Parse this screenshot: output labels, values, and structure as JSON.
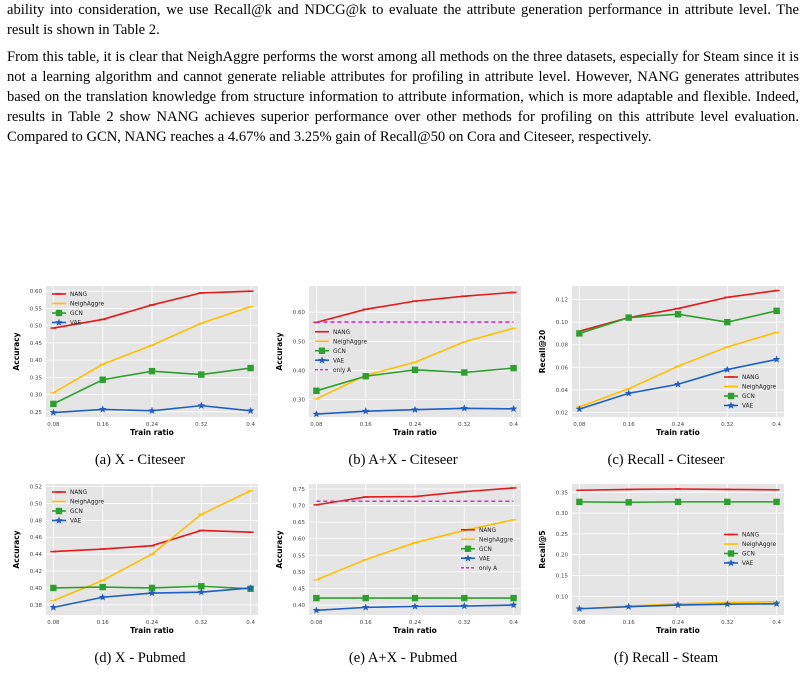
{
  "text": {
    "para1": "ability into consideration, we use Recall@k and NDCG@k to evaluate the attribute generation performance in attribute level. The result is shown in Table 2.",
    "para2": "From this table, it is clear that NeighAggre performs the worst among all methods on the three datasets, especially for Steam since it is not a learning algorithm and cannot generate reliable attributes for profiling in attribute level. However, NANG generates attributes based on the translation knowledge from structure information to attribute information, which is more adaptable and flexible. Indeed, results in Table 2 show NANG achieves superior performance over other methods for profiling on this attribute level evaluation. Compared to GCN, NANG reaches a 4.67% and 3.25% gain of Recall@50 on Cora and Citeseer, respectively."
  },
  "colors": {
    "NANG": "#e41a1c",
    "NeighAggre": "#ffbf00",
    "GCN": "#2ca02c",
    "VAE": "#1f5fc4",
    "only A": "#cc33cc",
    "plot_bg": "#e5e5e5",
    "grid": "#ffffff"
  },
  "chart_data": [
    {
      "type": "line",
      "caption": "(a) X - Citeseer",
      "xlabel": "Train ratio",
      "ylabel": "Accuracy",
      "x": [
        0.08,
        0.16,
        0.24,
        0.32,
        0.4
      ],
      "xticks": [
        "0.08",
        "0.16",
        "0.24",
        "0.32",
        "0.4"
      ],
      "ylim": [
        0.235,
        0.615
      ],
      "yticks": [
        0.25,
        0.3,
        0.35,
        0.4,
        0.45,
        0.5,
        0.55,
        0.6
      ],
      "ytick_labels": [
        "0.25",
        "0.30",
        "0.35",
        "0.40",
        "0.45",
        "0.50",
        "0.55",
        "0.60"
      ],
      "legend": "top-left",
      "series": [
        {
          "name": "NANG",
          "values": [
            0.493,
            0.518,
            0.56,
            0.595,
            0.6
          ]
        },
        {
          "name": "NeighAggre",
          "values": [
            0.305,
            0.388,
            0.443,
            0.507,
            0.555
          ]
        },
        {
          "name": "GCN",
          "values": [
            0.273,
            0.343,
            0.368,
            0.358,
            0.377
          ]
        },
        {
          "name": "VAE",
          "values": [
            0.248,
            0.257,
            0.253,
            0.268,
            0.253
          ]
        }
      ]
    },
    {
      "type": "line",
      "caption": "(b) A+X - Citeseer",
      "xlabel": "Train ratio",
      "ylabel": "Accuracy",
      "x": [
        0.08,
        0.16,
        0.24,
        0.32,
        0.4
      ],
      "xticks": [
        "0.08",
        "0.16",
        "0.24",
        "0.32",
        "0.4"
      ],
      "ylim": [
        0.24,
        0.69
      ],
      "yticks": [
        0.3,
        0.4,
        0.5,
        0.6
      ],
      "ytick_labels": [
        "0.30",
        "0.40",
        "0.50",
        "0.60"
      ],
      "legend": "center-left",
      "series": [
        {
          "name": "NANG",
          "values": [
            0.565,
            0.61,
            0.638,
            0.655,
            0.668
          ]
        },
        {
          "name": "NeighAggre",
          "values": [
            0.302,
            0.383,
            0.428,
            0.498,
            0.545
          ]
        },
        {
          "name": "GCN",
          "values": [
            0.33,
            0.38,
            0.402,
            0.393,
            0.408
          ]
        },
        {
          "name": "VAE",
          "values": [
            0.25,
            0.26,
            0.265,
            0.27,
            0.268
          ]
        },
        {
          "name": "only A",
          "values": [
            0.566,
            0.566,
            0.566,
            0.566,
            0.566
          ],
          "dashed": true
        }
      ]
    },
    {
      "type": "line",
      "caption": "(c) Recall - Citeseer",
      "xlabel": "Train ratio",
      "ylabel": "Recall@20",
      "x": [
        0.08,
        0.16,
        0.24,
        0.32,
        0.4
      ],
      "xticks": [
        "0.08",
        "0.16",
        "0.24",
        "0.32",
        "0.4"
      ],
      "ylim": [
        0.016,
        0.132
      ],
      "yticks": [
        0.02,
        0.04,
        0.06,
        0.08,
        0.1,
        0.12
      ],
      "ytick_labels": [
        "0.02",
        "0.04",
        "0.06",
        "0.08",
        "0.10",
        "0.12"
      ],
      "legend": "bottom-right",
      "series": [
        {
          "name": "NANG",
          "values": [
            0.092,
            0.104,
            0.112,
            0.122,
            0.128
          ]
        },
        {
          "name": "NeighAggre",
          "values": [
            0.025,
            0.041,
            0.061,
            0.078,
            0.091
          ]
        },
        {
          "name": "GCN",
          "values": [
            0.09,
            0.104,
            0.107,
            0.1,
            0.11
          ]
        },
        {
          "name": "VAE",
          "values": [
            0.023,
            0.037,
            0.045,
            0.058,
            0.067
          ]
        }
      ]
    },
    {
      "type": "line",
      "caption": "(d) X - Pubmed",
      "xlabel": "Train ratio",
      "ylabel": "Accuracy",
      "x": [
        0.08,
        0.16,
        0.24,
        0.32,
        0.4
      ],
      "xticks": [
        "0.08",
        "0.16",
        "0.24",
        "0.32",
        "0.4"
      ],
      "ylim": [
        0.368,
        0.523
      ],
      "yticks": [
        0.38,
        0.4,
        0.42,
        0.44,
        0.46,
        0.48,
        0.5,
        0.52
      ],
      "ytick_labels": [
        "0.38",
        "0.40",
        "0.42",
        "0.44",
        "0.46",
        "0.48",
        "0.50",
        "0.52"
      ],
      "legend": "top-left",
      "series": [
        {
          "name": "NANG",
          "values": [
            0.443,
            0.446,
            0.45,
            0.468,
            0.466
          ]
        },
        {
          "name": "NeighAggre",
          "values": [
            0.385,
            0.409,
            0.44,
            0.487,
            0.515
          ]
        },
        {
          "name": "GCN",
          "values": [
            0.4,
            0.401,
            0.4,
            0.402,
            0.399
          ]
        },
        {
          "name": "VAE",
          "values": [
            0.377,
            0.389,
            0.394,
            0.395,
            0.4
          ]
        }
      ]
    },
    {
      "type": "line",
      "caption": "(e) A+X - Pubmed",
      "xlabel": "Train ratio",
      "ylabel": "Accuracy",
      "x": [
        0.08,
        0.16,
        0.24,
        0.32,
        0.4
      ],
      "xticks": [
        "0.08",
        "0.16",
        "0.24",
        "0.32",
        "0.4"
      ],
      "ylim": [
        0.37,
        0.765
      ],
      "yticks": [
        0.4,
        0.45,
        0.5,
        0.55,
        0.6,
        0.65,
        0.7,
        0.75
      ],
      "ytick_labels": [
        "0.40",
        "0.45",
        "0.50",
        "0.55",
        "0.60",
        "0.65",
        "0.70",
        "0.75"
      ],
      "legend": "center-right",
      "series": [
        {
          "name": "NANG",
          "values": [
            0.702,
            0.726,
            0.727,
            0.742,
            0.753
          ]
        },
        {
          "name": "NeighAggre",
          "values": [
            0.476,
            0.537,
            0.588,
            0.625,
            0.657
          ]
        },
        {
          "name": "GCN",
          "values": [
            0.421,
            0.421,
            0.421,
            0.421,
            0.421
          ]
        },
        {
          "name": "VAE",
          "values": [
            0.384,
            0.393,
            0.396,
            0.397,
            0.4
          ]
        },
        {
          "name": "only A",
          "values": [
            0.713,
            0.713,
            0.713,
            0.713,
            0.713
          ],
          "dashed": true
        }
      ]
    },
    {
      "type": "line",
      "caption": "(f) Recall - Steam",
      "xlabel": "Train ratio",
      "ylabel": "Recall@5",
      "x": [
        0.08,
        0.16,
        0.24,
        0.32,
        0.4
      ],
      "xticks": [
        "0.08",
        "0.16",
        "0.24",
        "0.32",
        "0.4"
      ],
      "ylim": [
        0.055,
        0.37
      ],
      "yticks": [
        0.1,
        0.15,
        0.2,
        0.25,
        0.3,
        0.35
      ],
      "ytick_labels": [
        "0.10",
        "0.15",
        "0.20",
        "0.25",
        "0.30",
        "0.35"
      ],
      "legend": "center-right",
      "series": [
        {
          "name": "NANG",
          "values": [
            0.355,
            0.357,
            0.358,
            0.357,
            0.356
          ]
        },
        {
          "name": "NeighAggre",
          "values": [
            0.07,
            0.076,
            0.082,
            0.085,
            0.087
          ]
        },
        {
          "name": "GCN",
          "values": [
            0.327,
            0.326,
            0.327,
            0.327,
            0.327
          ]
        },
        {
          "name": "VAE",
          "values": [
            0.07,
            0.075,
            0.079,
            0.081,
            0.082
          ]
        }
      ]
    }
  ]
}
